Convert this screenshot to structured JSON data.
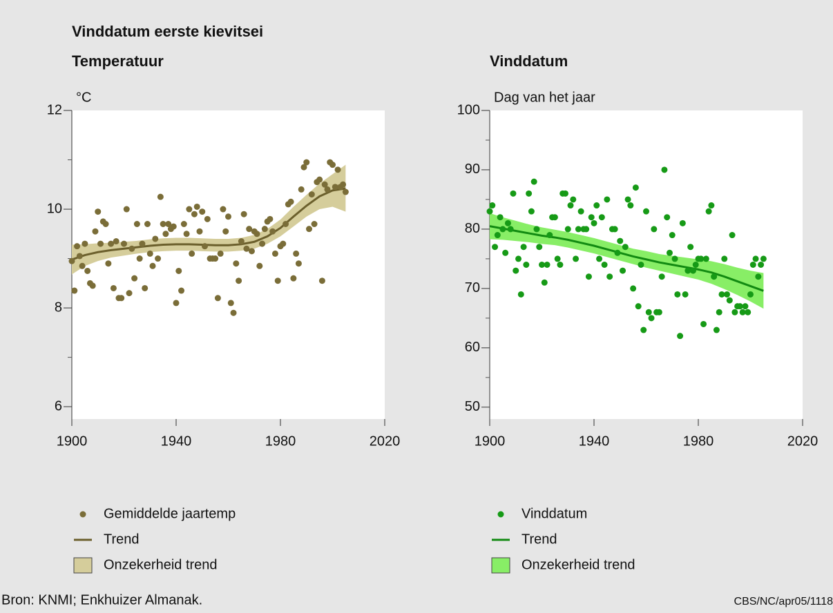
{
  "header": {
    "title": "Vinddatum eerste kievitsei"
  },
  "footer": {
    "source": "Bron: KNMI; Enkhuizer Almanak.",
    "code": "CBS/NC/apr05/1118"
  },
  "chart_data": [
    {
      "type": "scatter",
      "title": "Temperatuur",
      "y_label": "°C",
      "xlim": [
        1900,
        2020
      ],
      "xticks": [
        1900,
        1940,
        1980,
        2020
      ],
      "ylim": [
        5.75,
        12
      ],
      "yticks": [
        6,
        8,
        10,
        12
      ],
      "yminor_ticks": [
        7,
        9,
        11
      ],
      "series": [
        {
          "name": "Gemiddelde jaartemp",
          "kind": "scatter",
          "color": "#7a6d38",
          "x": [
            1900,
            1901,
            1902,
            1903,
            1904,
            1905,
            1906,
            1907,
            1908,
            1909,
            1910,
            1911,
            1912,
            1913,
            1914,
            1915,
            1916,
            1917,
            1918,
            1919,
            1920,
            1921,
            1922,
            1923,
            1924,
            1925,
            1926,
            1927,
            1928,
            1929,
            1930,
            1931,
            1932,
            1933,
            1934,
            1935,
            1936,
            1937,
            1938,
            1939,
            1940,
            1941,
            1942,
            1943,
            1944,
            1945,
            1946,
            1947,
            1948,
            1949,
            1950,
            1951,
            1952,
            1953,
            1954,
            1955,
            1956,
            1957,
            1958,
            1959,
            1960,
            1961,
            1962,
            1963,
            1964,
            1965,
            1966,
            1967,
            1968,
            1969,
            1970,
            1971,
            1972,
            1973,
            1974,
            1975,
            1976,
            1977,
            1978,
            1979,
            1980,
            1981,
            1982,
            1983,
            1984,
            1985,
            1986,
            1987,
            1988,
            1989,
            1990,
            1991,
            1992,
            1993,
            1994,
            1995,
            1996,
            1997,
            1998,
            1999,
            2000,
            2001,
            2002,
            2003,
            2004,
            2005
          ],
          "values": [
            8.95,
            8.35,
            9.25,
            9.05,
            8.85,
            9.3,
            8.75,
            8.5,
            8.45,
            9.55,
            9.95,
            9.3,
            9.75,
            9.7,
            8.9,
            9.3,
            8.4,
            9.35,
            8.2,
            8.2,
            9.3,
            10.0,
            8.3,
            9.2,
            8.6,
            9.7,
            9.0,
            9.3,
            8.4,
            9.7,
            9.1,
            8.85,
            9.4,
            9.0,
            10.25,
            9.7,
            9.5,
            9.7,
            9.6,
            9.65,
            8.1,
            8.75,
            8.35,
            9.7,
            9.5,
            10.0,
            9.1,
            9.9,
            10.05,
            9.55,
            9.95,
            9.25,
            9.8,
            9.0,
            9.0,
            9.0,
            8.2,
            9.1,
            10.0,
            9.55,
            9.85,
            8.1,
            7.9,
            8.9,
            8.55,
            9.35,
            9.9,
            9.2,
            9.6,
            9.15,
            9.55,
            9.5,
            8.85,
            9.3,
            9.6,
            9.75,
            9.8,
            9.55,
            9.1,
            8.55,
            9.25,
            9.3,
            9.7,
            10.1,
            10.15,
            8.6,
            9.1,
            8.9,
            10.4,
            10.85,
            10.95,
            9.6,
            10.3,
            9.7,
            10.55,
            10.6,
            8.55,
            10.5,
            10.4,
            10.95,
            10.9,
            10.45,
            10.8,
            10.45,
            10.5,
            10.35
          ]
        },
        {
          "name": "Trend",
          "kind": "line",
          "color": "#6b5f2c",
          "x": [
            1900,
            1905,
            1910,
            1915,
            1920,
            1925,
            1930,
            1935,
            1940,
            1945,
            1950,
            1955,
            1960,
            1965,
            1970,
            1975,
            1980,
            1985,
            1990,
            1995,
            2000,
            2005
          ],
          "values": [
            8.98,
            9.07,
            9.13,
            9.17,
            9.2,
            9.23,
            9.26,
            9.28,
            9.29,
            9.29,
            9.28,
            9.27,
            9.27,
            9.29,
            9.34,
            9.45,
            9.62,
            9.85,
            10.07,
            10.26,
            10.38,
            10.42
          ]
        },
        {
          "name": "Onzekerheid trend",
          "kind": "band",
          "color": "#d5cd9b",
          "x": [
            1900,
            1905,
            1910,
            1915,
            1920,
            1925,
            1930,
            1935,
            1940,
            1945,
            1950,
            1955,
            1960,
            1965,
            1970,
            1975,
            1980,
            1985,
            1990,
            1995,
            2000,
            2005
          ],
          "lower": [
            8.68,
            8.85,
            8.95,
            9.02,
            9.06,
            9.1,
            9.13,
            9.15,
            9.16,
            9.16,
            9.15,
            9.14,
            9.14,
            9.16,
            9.2,
            9.3,
            9.45,
            9.65,
            9.85,
            10.0,
            10.05,
            9.95
          ],
          "upper": [
            9.28,
            9.29,
            9.31,
            9.32,
            9.34,
            9.36,
            9.39,
            9.41,
            9.42,
            9.42,
            9.41,
            9.4,
            9.4,
            9.42,
            9.48,
            9.6,
            9.79,
            10.05,
            10.29,
            10.52,
            10.71,
            10.9
          ]
        }
      ]
    },
    {
      "type": "scatter",
      "title": "Vinddatum",
      "y_label": "Dag van het jaar",
      "xlim": [
        1900,
        2020
      ],
      "xticks": [
        1900,
        1940,
        1980,
        2020
      ],
      "ylim": [
        48,
        100
      ],
      "yticks": [
        50,
        60,
        70,
        80,
        90,
        100
      ],
      "yminor_ticks": [
        55,
        65,
        75,
        85,
        95
      ],
      "series": [
        {
          "name": "Vinddatum",
          "kind": "scatter",
          "color": "#169a16",
          "x": [
            1900,
            1901,
            1902,
            1903,
            1904,
            1905,
            1906,
            1907,
            1908,
            1909,
            1910,
            1911,
            1912,
            1913,
            1914,
            1915,
            1916,
            1917,
            1918,
            1919,
            1920,
            1921,
            1922,
            1923,
            1924,
            1925,
            1926,
            1927,
            1928,
            1929,
            1930,
            1931,
            1932,
            1933,
            1934,
            1935,
            1936,
            1937,
            1938,
            1939,
            1940,
            1941,
            1942,
            1943,
            1944,
            1945,
            1946,
            1947,
            1948,
            1949,
            1950,
            1951,
            1952,
            1953,
            1954,
            1955,
            1956,
            1957,
            1958,
            1959,
            1960,
            1961,
            1962,
            1963,
            1964,
            1965,
            1966,
            1967,
            1968,
            1969,
            1970,
            1971,
            1972,
            1973,
            1974,
            1975,
            1976,
            1977,
            1978,
            1979,
            1980,
            1981,
            1982,
            1983,
            1984,
            1985,
            1986,
            1987,
            1988,
            1989,
            1990,
            1991,
            1992,
            1993,
            1994,
            1995,
            1996,
            1997,
            1998,
            1999,
            2000,
            2001,
            2002,
            2003,
            2004,
            2005
          ],
          "values": [
            83,
            84,
            77,
            79,
            82,
            80,
            76,
            81,
            80,
            86,
            73,
            75,
            69,
            77,
            74,
            86,
            83,
            88,
            80,
            77,
            74,
            71,
            74,
            79,
            82,
            82,
            75,
            74,
            86,
            86,
            80,
            84,
            85,
            75,
            80,
            83,
            80,
            80,
            72,
            82,
            81,
            84,
            75,
            82,
            74,
            85,
            72,
            80,
            80,
            76,
            78,
            73,
            77,
            85,
            84,
            70,
            87,
            67,
            74,
            63,
            83,
            66,
            65,
            80,
            66,
            66,
            72,
            90,
            82,
            76,
            79,
            75,
            69,
            62,
            81,
            69,
            73,
            77,
            73,
            74,
            75,
            75,
            64,
            75,
            83,
            84,
            72,
            63,
            66,
            69,
            75,
            69,
            68,
            79,
            66,
            67,
            67,
            66,
            67,
            66,
            69,
            74,
            75,
            72,
            74,
            75
          ]
        },
        {
          "name": "Trend",
          "kind": "line",
          "color": "#128a12",
          "x": [
            1900,
            1905,
            1910,
            1915,
            1920,
            1925,
            1930,
            1935,
            1940,
            1945,
            1950,
            1955,
            1960,
            1965,
            1970,
            1975,
            1980,
            1985,
            1990,
            1995,
            2000,
            2005
          ],
          "values": [
            80.5,
            80.1,
            79.7,
            79.3,
            78.9,
            78.6,
            78.2,
            77.7,
            77.2,
            76.6,
            76.0,
            75.4,
            74.9,
            74.4,
            74.0,
            73.6,
            73.2,
            72.7,
            72.0,
            71.2,
            70.4,
            69.6
          ]
        },
        {
          "name": "Onzekerheid trend",
          "kind": "band",
          "color": "#88ee66",
          "x": [
            1900,
            1905,
            1910,
            1915,
            1920,
            1925,
            1930,
            1935,
            1940,
            1945,
            1950,
            1955,
            1960,
            1965,
            1970,
            1975,
            1980,
            1985,
            1990,
            1995,
            2000,
            2005
          ],
          "lower": [
            78.3,
            78.2,
            78.0,
            77.8,
            77.5,
            77.3,
            76.9,
            76.4,
            75.9,
            75.3,
            74.7,
            74.1,
            73.5,
            73.0,
            72.5,
            72.0,
            71.5,
            70.8,
            69.9,
            68.9,
            67.8,
            66.6
          ],
          "upper": [
            82.7,
            82.0,
            81.4,
            80.8,
            80.3,
            79.9,
            79.5,
            79.0,
            78.5,
            77.9,
            77.3,
            76.7,
            76.3,
            75.8,
            75.5,
            75.2,
            74.9,
            74.6,
            74.1,
            73.5,
            73.0,
            72.6
          ]
        }
      ]
    }
  ]
}
